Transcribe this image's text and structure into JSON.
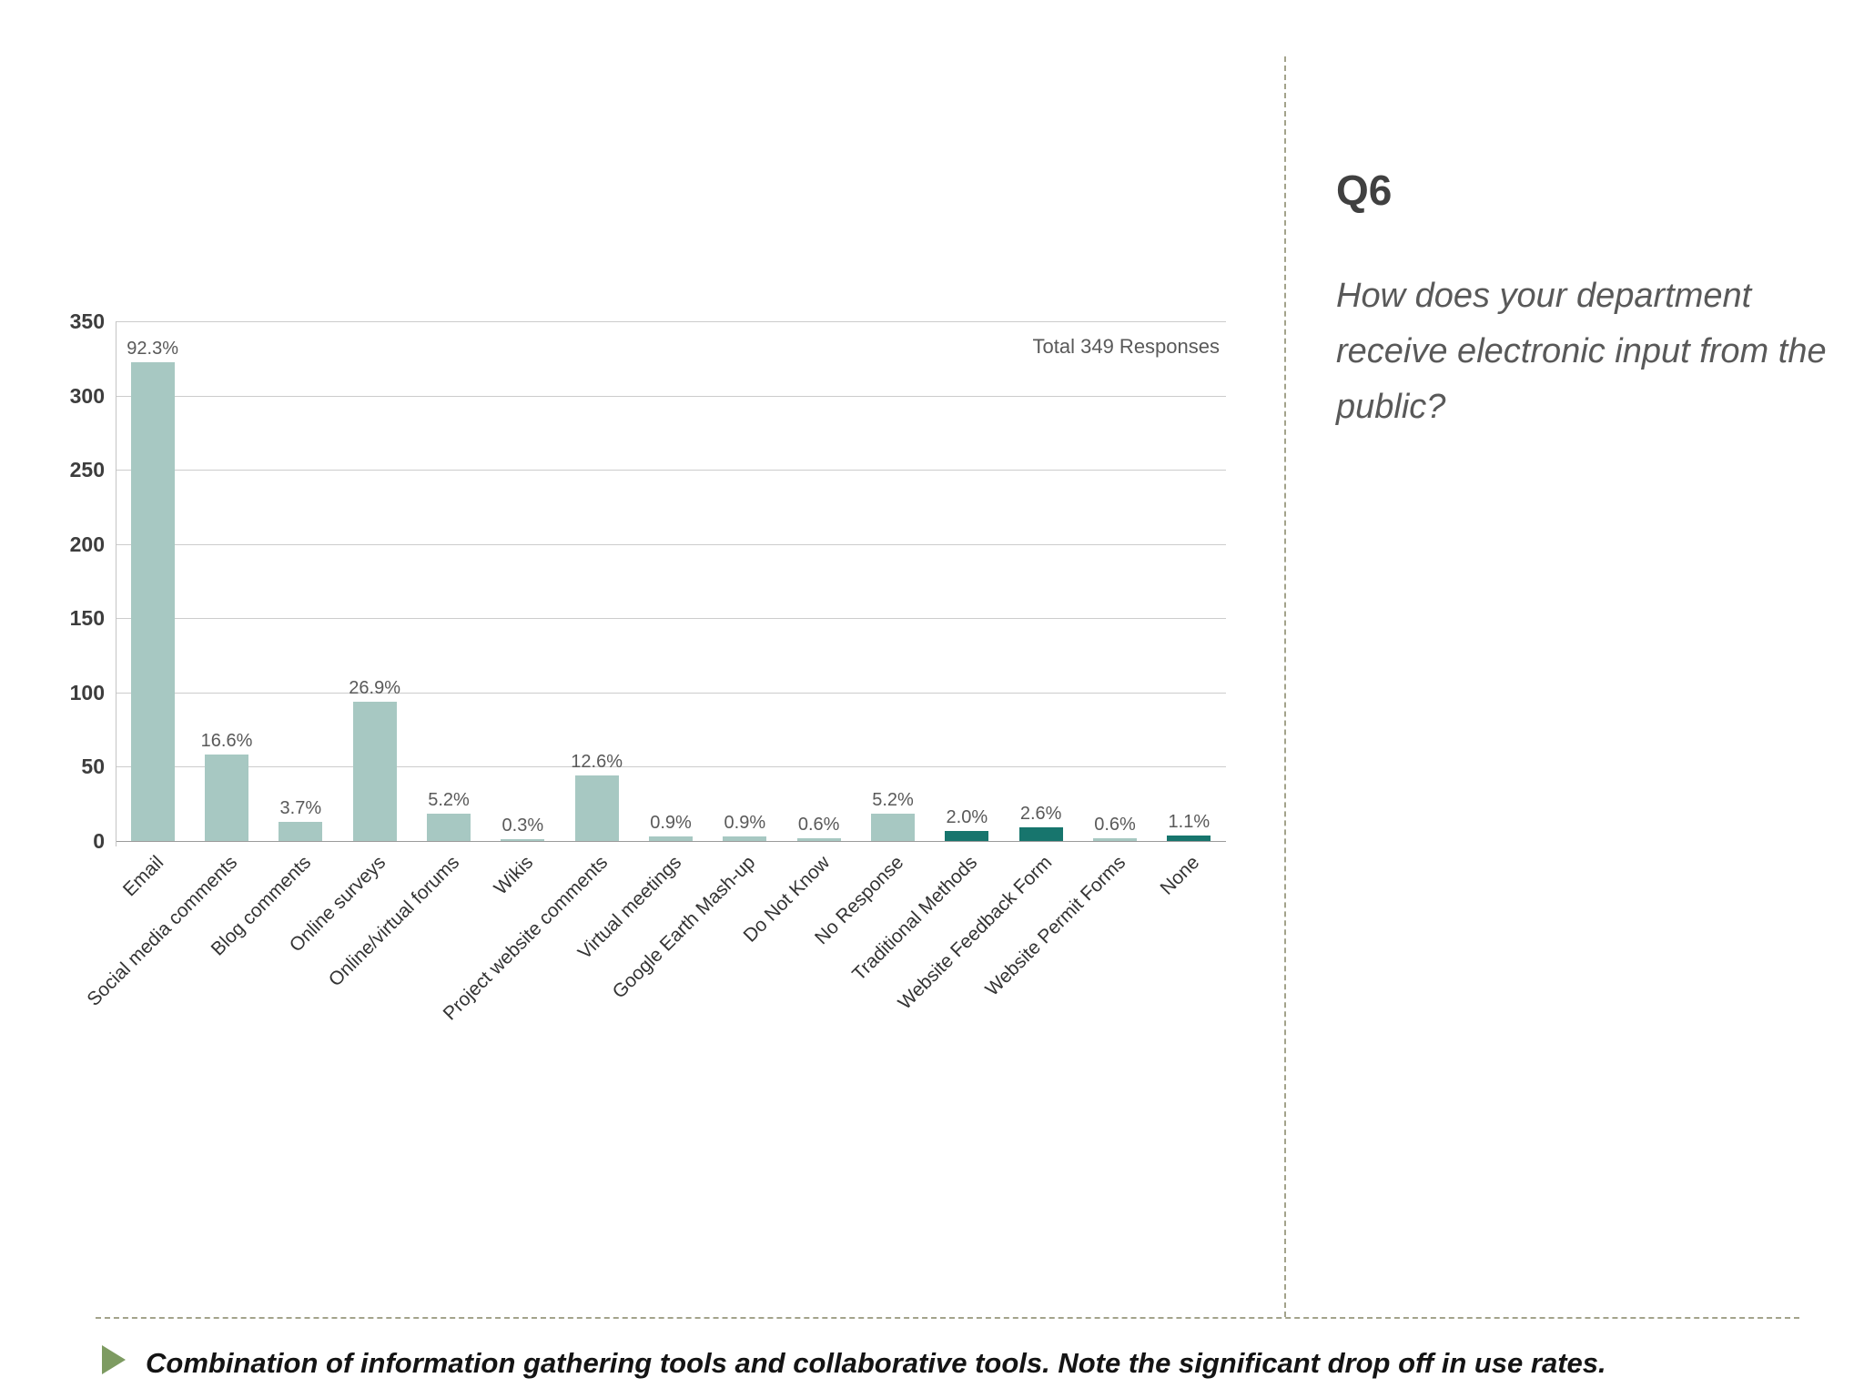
{
  "chart_data": {
    "type": "bar",
    "title": "",
    "total_label": "Total 349 Responses",
    "total": 349,
    "categories": [
      "Email",
      "Social media comments",
      "Blog comments",
      "Online surveys",
      "Online/virtual forums",
      "Wikis",
      "Project website comments",
      "Virtual meetings",
      "Google Earth Mash-up",
      "Do Not Know",
      "No Response",
      "Traditional Methods",
      "Website Feedback Form",
      "Website Permit Forms",
      "None"
    ],
    "percent_labels": [
      "92.3%",
      "16.6%",
      "3.7%",
      "26.9%",
      "5.2%",
      "0.3%",
      "12.6%",
      "0.9%",
      "0.9%",
      "0.6%",
      "5.2%",
      "2.0%",
      "2.6%",
      "0.6%",
      "1.1%"
    ],
    "values_pct": [
      92.3,
      16.6,
      3.7,
      26.9,
      5.2,
      0.3,
      12.6,
      0.9,
      0.9,
      0.6,
      5.2,
      2.0,
      2.6,
      0.6,
      1.1
    ],
    "values_count": [
      322,
      58,
      13,
      94,
      18,
      1,
      44,
      3,
      3,
      2,
      18,
      7,
      9,
      2,
      4
    ],
    "xlabel": "",
    "ylabel": "",
    "ylim": [
      0,
      350
    ],
    "yticks": [
      0,
      50,
      100,
      150,
      200,
      250,
      300,
      350
    ],
    "grid": true,
    "legend": "none",
    "bar_colors": [
      "light",
      "light",
      "light",
      "light",
      "light",
      "light",
      "light",
      "light",
      "light",
      "light",
      "light",
      "dark",
      "dark",
      "light",
      "dark"
    ],
    "colors": {
      "light": "#a7c8c2",
      "dark": "#17756d"
    }
  },
  "sidebar": {
    "heading": "Q6",
    "question": "How does your department receive electronic input from the public?"
  },
  "footer": {
    "note": "Combination of information gathering tools and collaborative tools.  Note the significant drop off in use rates."
  }
}
